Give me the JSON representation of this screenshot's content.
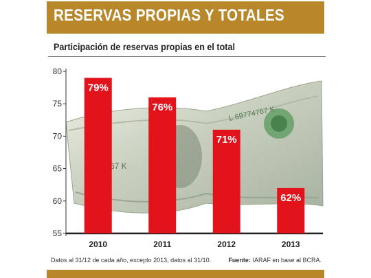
{
  "header": {
    "title": "RESERVAS PROPIAS Y TOTALES"
  },
  "chart_data": {
    "type": "bar",
    "title": "Participación de reservas propias en el total",
    "categories": [
      "2010",
      "2011",
      "2012",
      "2013"
    ],
    "values": [
      79,
      76,
      71,
      62
    ],
    "data_labels": [
      "79%",
      "76%",
      "71%",
      "62%"
    ],
    "ylim": [
      55,
      80
    ],
    "yticks": [
      55,
      60,
      65,
      70,
      75,
      80
    ],
    "xlabel": "",
    "ylabel": "",
    "grid": false,
    "bar_color": "#e3131b",
    "background_image": "dollar-bill"
  },
  "footer": {
    "note": "Datos al 31/12 de cada año, excepto 2013, datos al 31/10.",
    "source_label": "Fuente:",
    "source_text": "IARAF en base al BCRA."
  },
  "colors": {
    "accent": "#b8872a",
    "bar": "#e3131b",
    "text": "#222222"
  }
}
